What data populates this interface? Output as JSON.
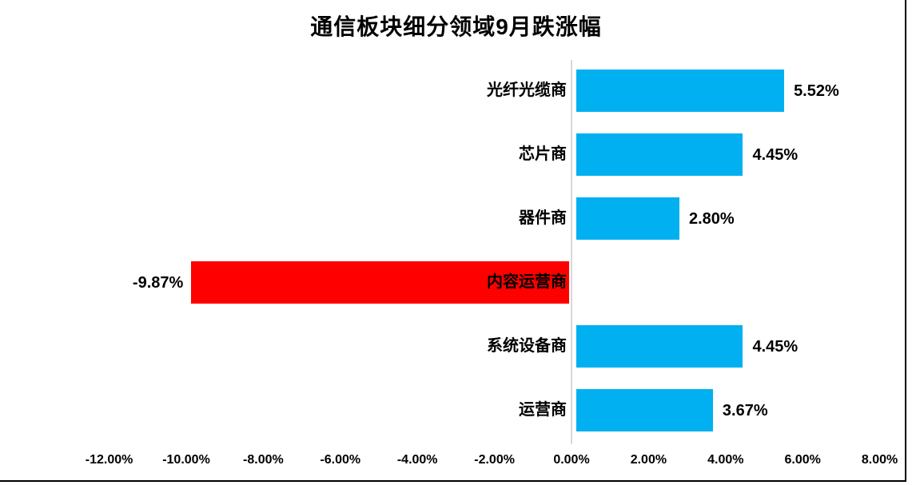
{
  "chart_data": {
    "type": "bar",
    "orientation": "horizontal",
    "title": "通信板块细分领域9月跌涨幅",
    "categories": [
      "光纤光缆商",
      "芯片商",
      "器件商",
      "内容运营商",
      "系统设备商",
      "运营商"
    ],
    "values": [
      5.52,
      4.45,
      2.8,
      -9.87,
      4.45,
      3.67
    ],
    "value_labels": [
      "5.52%",
      "4.45%",
      "2.80%",
      "-9.87%",
      "4.45%",
      "3.67%"
    ],
    "xlabel": "",
    "ylabel": "",
    "xlim": [
      -12,
      8
    ],
    "x_ticks": [
      -12,
      -10,
      -8,
      -6,
      -4,
      -2,
      0,
      2,
      4,
      6,
      8
    ],
    "x_tick_labels": [
      "-12.00%",
      "-10.00%",
      "-8.00%",
      "-6.00%",
      "-4.00%",
      "-2.00%",
      "0.00%",
      "2.00%",
      "4.00%",
      "6.00%",
      "8.00%"
    ],
    "grid": false,
    "legend": false,
    "colors": {
      "positive_bar": "#00b0f0",
      "negative_bar": "#ff0000",
      "zero_axis_line": "#d9d9d9",
      "text": "#000000",
      "frame_border": "#000000"
    }
  }
}
